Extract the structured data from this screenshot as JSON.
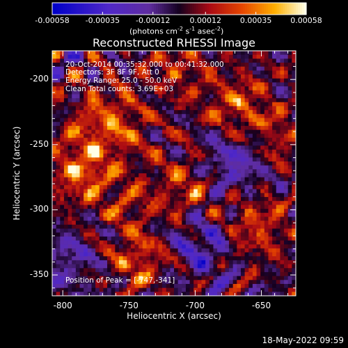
{
  "chart_data": {
    "type": "heatmap",
    "title": "Reconstructed RHESSI Image",
    "xlabel": "Heliocentric X (arcsec)",
    "ylabel": "Heliocentric Y (arcsec)",
    "xlim": [
      -808,
      -624
    ],
    "ylim": [
      -366,
      -178
    ],
    "xticks": [
      -800,
      -750,
      -700,
      -650
    ],
    "yticks": [
      -200,
      -250,
      -300,
      -350
    ],
    "colorbar": {
      "range": [
        -0.00058,
        0.00058
      ],
      "ticks": [
        -0.00058,
        -0.00035,
        -0.00012,
        0.00012,
        0.00035,
        0.00058
      ],
      "tick_labels": [
        "-0.00058",
        "-0.00035",
        "-0.00012",
        "0.00012",
        "0.00035",
        "0.00058"
      ],
      "unit_label": "(photons cm-2 s-1 asec-2)",
      "unit_base": "(photons cm",
      "unit_exp1": "-2",
      "unit_mid1": " s",
      "unit_exp2": "-1",
      "unit_mid2": " asec",
      "unit_exp3": "-2",
      "unit_end": ")"
    },
    "annotations": [
      "20-Oct-2014 00:35:32.000 to 00:41:32.000",
      "Detectors: 3F 8F 9F, Att 0",
      "Energy Range: 25.0 - 50.0 keV",
      "Clean    Total counts: 3.69E+03"
    ],
    "peak_label": "Position of Peak = [-747,-341]",
    "peak": {
      "x": -747,
      "y": -341
    }
  },
  "footer": {
    "timestamp": "18-May-2022 09:59"
  }
}
